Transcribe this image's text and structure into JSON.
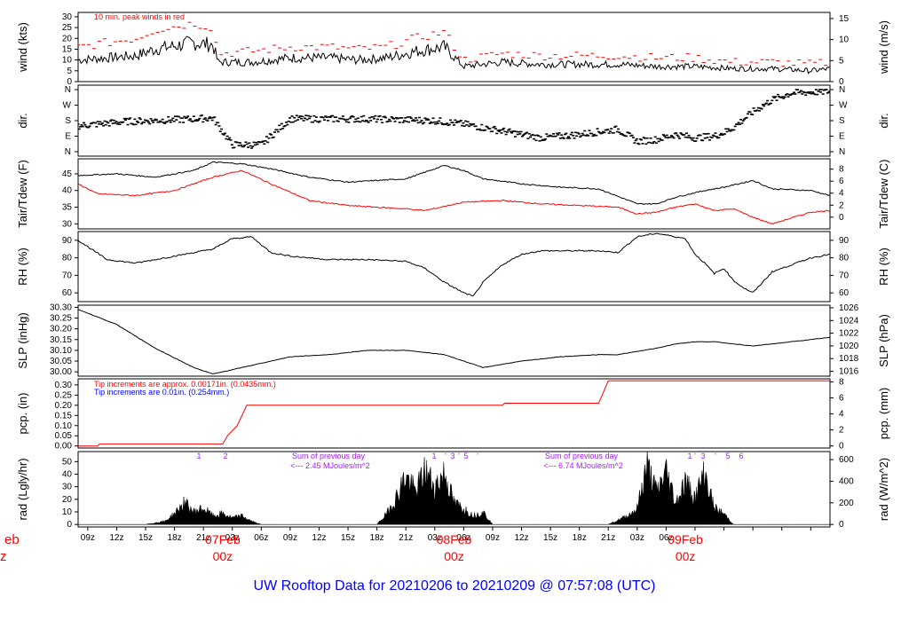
{
  "page_title": "UW Rooftop Data for 20210206  to  20210209 @ 07:57:08  (UTC)",
  "edge_labels": {
    "top": "eb",
    "bottom": "z"
  },
  "x_axis": {
    "tick_labels": [
      "09z",
      "12z",
      "15z",
      "18z",
      "21z",
      "03z",
      "06z",
      "09z",
      "12z",
      "15z",
      "18z",
      "21z",
      "03z",
      "06z",
      "09z",
      "12z",
      "15z",
      "18z",
      "21z",
      "03z",
      "06z"
    ],
    "day_labels": [
      {
        "date": "07Feb",
        "time": "00z"
      },
      {
        "date": "08Feb",
        "time": "00z"
      },
      {
        "date": "09Feb",
        "time": "00z"
      }
    ]
  },
  "colors": {
    "black": "#000000",
    "red": "#ff0000",
    "blue": "#0000ff",
    "purple": "#a020f0",
    "title_blue": "#0000ff"
  },
  "chart_data": [
    {
      "type": "line",
      "id": "wind",
      "ylabel": "wind (kts)",
      "ylabel_right": "wind (m/s)",
      "ylim": [
        0,
        32
      ],
      "yticks": [
        0,
        5,
        10,
        15,
        20,
        25,
        30
      ],
      "right_ticks": [
        0,
        5,
        10,
        15
      ],
      "annotation": "10 min. peak winds in red",
      "series": [
        {
          "color": "#000000",
          "x": [
            0,
            6,
            8,
            12,
            14,
            14.5,
            18,
            22,
            26,
            29,
            32,
            35,
            38,
            40,
            44,
            48,
            52,
            56,
            60,
            64,
            68,
            72,
            76,
            78
          ],
          "y": [
            10,
            12,
            15,
            18,
            17,
            9,
            9,
            11,
            11,
            10,
            11,
            14,
            16,
            7,
            9,
            8,
            8,
            8,
            7,
            7,
            6,
            6,
            5,
            6
          ]
        },
        {
          "color": "#ff0000",
          "x": [
            0,
            6,
            8,
            12,
            14,
            14.5,
            18,
            22,
            26,
            29,
            32,
            35,
            38,
            40,
            44,
            48,
            52,
            56,
            60,
            64,
            68,
            72,
            76,
            78
          ],
          "y": [
            16,
            20,
            24,
            27,
            25,
            13,
            14,
            16,
            16,
            15,
            16,
            20,
            23,
            10,
            13,
            12,
            12,
            12,
            11,
            11,
            9,
            9,
            8,
            9
          ]
        }
      ]
    },
    {
      "type": "scatter",
      "id": "dir",
      "ylabel": "dir.",
      "ylabel_right": "dir.",
      "yticks_labels": [
        "N",
        "E",
        "S",
        "W",
        "N"
      ],
      "series": [
        {
          "color": "#000000",
          "x": [
            0,
            5,
            10,
            14,
            16,
            19,
            22,
            30,
            37,
            40,
            44,
            48,
            52,
            56,
            58,
            60,
            62,
            64,
            66,
            67,
            68,
            70,
            72,
            74,
            78
          ],
          "y": [
            150,
            175,
            185,
            195,
            40,
            40,
            190,
            190,
            180,
            160,
            120,
            80,
            100,
            130,
            60,
            70,
            100,
            80,
            90,
            110,
            140,
            230,
            300,
            340,
            350
          ]
        }
      ]
    },
    {
      "type": "line",
      "id": "temp",
      "ylabel": "Tair/Tdew (F)",
      "ylabel_right": "Tair/Tdew (C)",
      "ylim": [
        28.5,
        49.5
      ],
      "yticks": [
        30,
        35,
        40,
        45
      ],
      "right_ticks": [
        0,
        2,
        4,
        6,
        8
      ],
      "series": [
        {
          "color": "#000000",
          "x": [
            0,
            4,
            8,
            12,
            14,
            17,
            20,
            24,
            28,
            34,
            38,
            40,
            42,
            46,
            50,
            54,
            58,
            60,
            62,
            65,
            67,
            70,
            72,
            76,
            78
          ],
          "y": [
            44.5,
            45,
            44,
            46,
            48.5,
            48,
            46.5,
            44,
            42.5,
            43.5,
            47.5,
            46,
            43.5,
            42,
            41,
            40.5,
            36,
            36,
            38,
            40,
            41,
            43,
            40.5,
            40,
            38.5
          ]
        },
        {
          "color": "#ff0000",
          "x": [
            0,
            2,
            6,
            10,
            14,
            17,
            20,
            24,
            28,
            34,
            36,
            40,
            44,
            48,
            52,
            56,
            58,
            60,
            62,
            64,
            66,
            68,
            70,
            72,
            76,
            78
          ],
          "y": [
            42,
            39,
            38.5,
            40,
            44,
            46,
            42,
            37,
            35.5,
            34.5,
            34,
            36.5,
            37,
            36,
            35.5,
            35,
            33,
            33.5,
            35,
            36,
            34,
            34.5,
            32,
            30,
            33.5,
            34
          ]
        }
      ]
    },
    {
      "type": "line",
      "id": "rh",
      "ylabel": "RH (%)",
      "ylabel_right": "RH (%)",
      "ylim": [
        55,
        95
      ],
      "yticks": [
        60,
        70,
        80,
        90
      ],
      "right_ticks": [
        60,
        70,
        80,
        90
      ],
      "series": [
        {
          "color": "#000000",
          "x": [
            0,
            3,
            6,
            10,
            14,
            16,
            18,
            20,
            22,
            26,
            30,
            34,
            36,
            38,
            40,
            41,
            42,
            44,
            46,
            48,
            50,
            54,
            56,
            58,
            60,
            62,
            63,
            64,
            65,
            66,
            67,
            68,
            69,
            70,
            72,
            76,
            78
          ],
          "y": [
            90,
            79,
            77,
            81,
            85,
            91,
            92,
            83,
            81,
            79,
            79,
            78,
            74,
            66,
            60,
            58,
            66,
            76,
            82,
            84,
            84,
            84,
            83,
            92,
            94,
            92,
            91,
            82,
            77,
            71,
            74,
            67,
            63,
            60,
            72,
            80,
            82
          ]
        }
      ]
    },
    {
      "type": "line",
      "id": "slp",
      "ylabel": "SLP (inHg)",
      "ylabel_right": "SLP (hPa)",
      "ylim": [
        29.98,
        30.31
      ],
      "yticks": [
        30.0,
        30.05,
        30.1,
        30.15,
        30.2,
        30.25,
        30.3
      ],
      "right_ticks": [
        1016,
        1018,
        1020,
        1022,
        1024,
        1026
      ],
      "series": [
        {
          "color": "#000000",
          "x": [
            0,
            4,
            8,
            12,
            14,
            18,
            22,
            26,
            30,
            34,
            38,
            40,
            42,
            46,
            50,
            54,
            56,
            60,
            62,
            64,
            66,
            68,
            70,
            72,
            76,
            78
          ],
          "y": [
            30.29,
            30.22,
            30.11,
            30.02,
            29.99,
            30.03,
            30.07,
            30.08,
            30.1,
            30.1,
            30.08,
            30.05,
            30.02,
            30.05,
            30.07,
            30.08,
            30.08,
            30.11,
            30.13,
            30.14,
            30.14,
            30.13,
            30.12,
            30.13,
            30.15,
            30.16
          ]
        }
      ]
    },
    {
      "type": "line",
      "id": "pcp",
      "ylabel": "pcp. (in)",
      "ylabel_right": "pcp. (mm)",
      "ylim": [
        -0.01,
        0.33
      ],
      "yticks": [
        0.0,
        0.05,
        0.1,
        0.15,
        0.2,
        0.25,
        0.3
      ],
      "right_ticks": [
        0,
        2,
        4,
        6,
        8
      ],
      "annotations": [
        {
          "text": "Tip increments are approx. 0.00171in. (0.0435mm.)",
          "color": "#ff0000"
        },
        {
          "text": "Tip increments are 0.01in. (0.254mm.)",
          "color": "#0000ff"
        }
      ],
      "series": [
        {
          "color": "#ff0000",
          "x": [
            0,
            2,
            2,
            15,
            15.5,
            16.5,
            17.5,
            44,
            44,
            54,
            55,
            78
          ],
          "y": [
            0.0,
            0.0,
            0.01,
            0.01,
            0.05,
            0.1,
            0.2,
            0.2,
            0.21,
            0.21,
            0.32,
            0.32
          ]
        }
      ]
    },
    {
      "type": "area",
      "id": "rad",
      "ylabel": "rad (Lgly/hr)",
      "ylabel_right": "rad (W/m^2)",
      "ylim": [
        -2,
        58
      ],
      "yticks": [
        0,
        10,
        20,
        30,
        40,
        50
      ],
      "right_ticks": [
        0,
        200,
        400,
        600
      ],
      "top_annotations": [
        {
          "text": "Sum of previous day",
          "color": "#a020f0"
        },
        {
          "text": "<--- 2.45 MJoules/m^2",
          "color": "#a020f0"
        },
        {
          "text": "Sum of previous day",
          "color": "#a020f0"
        },
        {
          "text": "<--- 6.74 MJoules/m^2",
          "color": "#a020f0"
        }
      ],
      "markers": [
        "1",
        "2",
        "1",
        "'",
        "3",
        "'",
        "5",
        "'",
        "1",
        "'",
        "3",
        "'",
        "5",
        "6"
      ],
      "series": [
        {
          "color": "#000000",
          "x": [
            7,
            9,
            10,
            11,
            12,
            13,
            14,
            15,
            16,
            17,
            18,
            19,
            31,
            32,
            33,
            34,
            35,
            36,
            37,
            38,
            39,
            40,
            41,
            42,
            43,
            55,
            57,
            58,
            59,
            60,
            61,
            62,
            63,
            64,
            65,
            66,
            67,
            68
          ],
          "y": [
            0,
            3,
            10,
            20,
            12,
            15,
            8,
            10,
            6,
            8,
            3,
            0,
            0,
            10,
            25,
            45,
            30,
            50,
            35,
            48,
            20,
            15,
            8,
            12,
            0,
            0,
            8,
            15,
            55,
            30,
            50,
            20,
            40,
            25,
            48,
            15,
            10,
            0
          ]
        }
      ]
    }
  ]
}
